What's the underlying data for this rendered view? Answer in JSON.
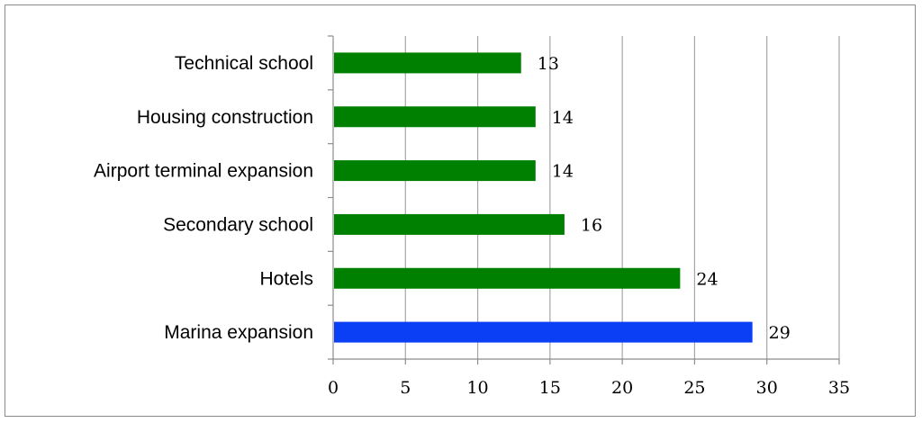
{
  "chart_data": {
    "type": "bar",
    "orientation": "horizontal",
    "categories": [
      "Technical school",
      "Housing construction",
      "Airport terminal expansion",
      "Secondary school",
      "Hotels",
      "Marina expansion"
    ],
    "values": [
      13,
      14,
      14,
      16,
      24,
      29
    ],
    "data_labels": [
      "13",
      "14",
      "14",
      "16",
      "24",
      "29"
    ],
    "bar_colors": [
      "#008000",
      "#008000",
      "#008000",
      "#008000",
      "#008000",
      "#0a3ff5"
    ],
    "xlim": [
      0,
      35
    ],
    "x_ticks": [
      0,
      5,
      10,
      15,
      20,
      25,
      30,
      35
    ],
    "x_tick_labels": [
      "0",
      "5",
      "10",
      "15",
      "20",
      "25",
      "30",
      "35"
    ],
    "title": "",
    "xlabel": "",
    "ylabel": "",
    "grid": "vertical",
    "legend": "none"
  }
}
